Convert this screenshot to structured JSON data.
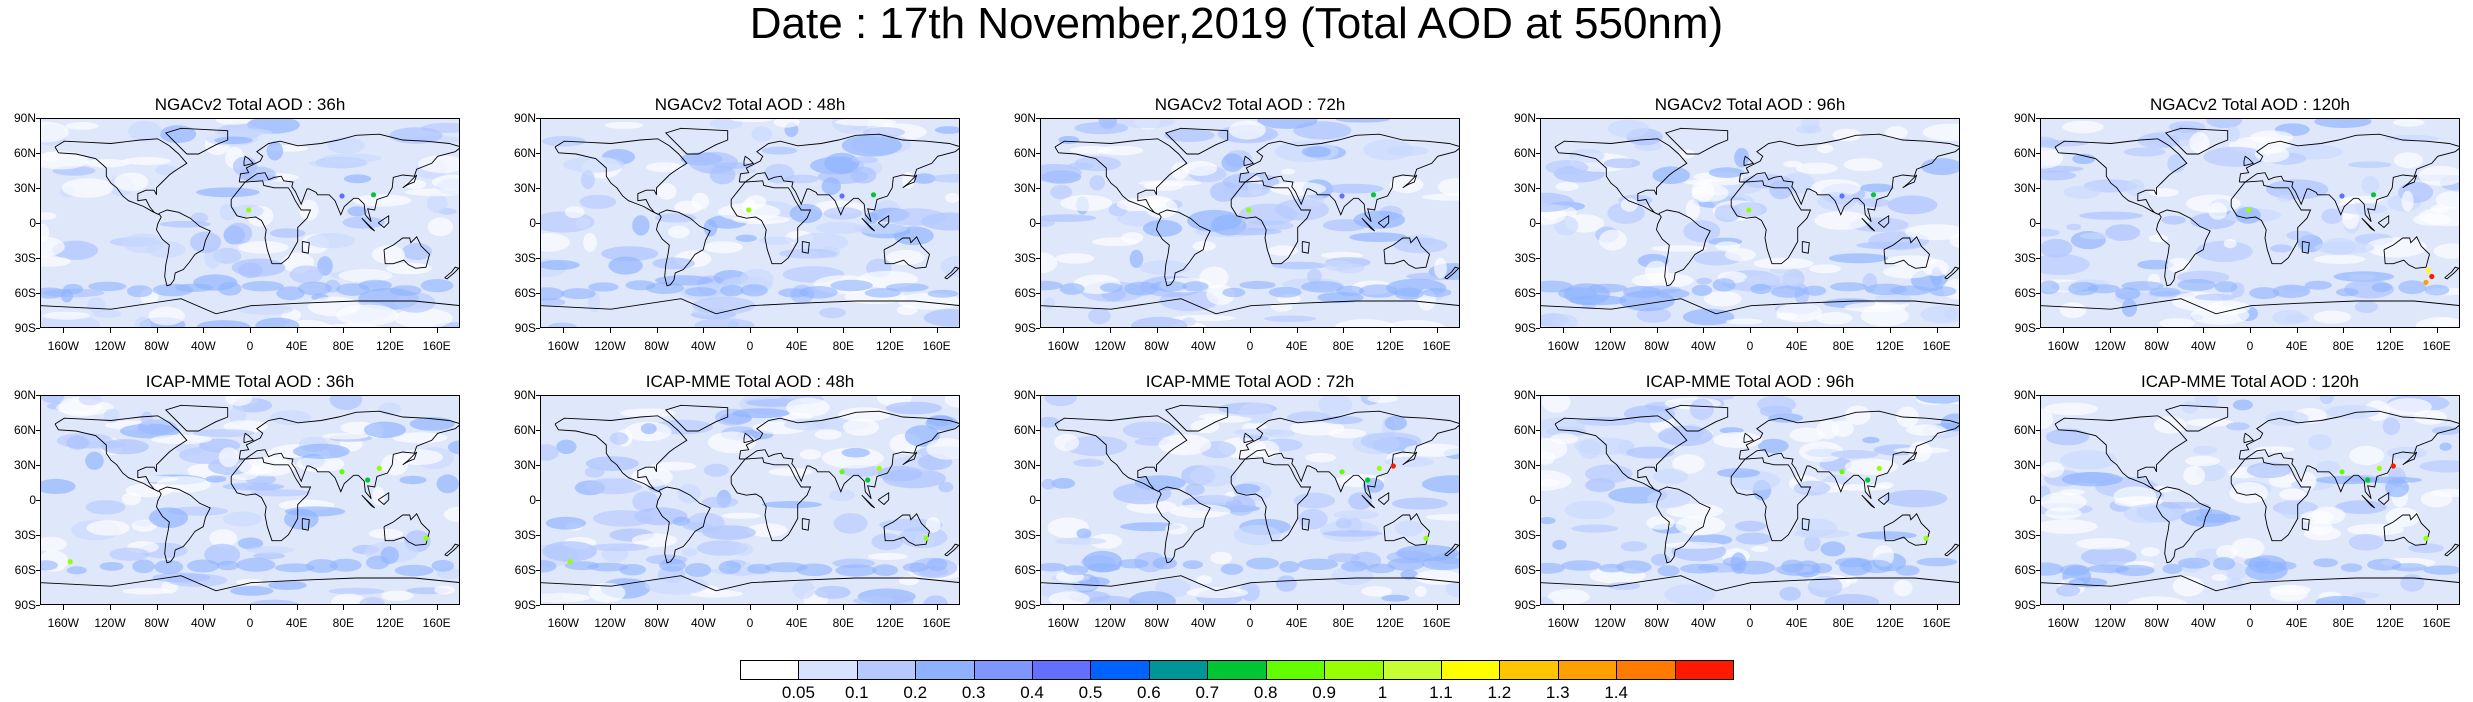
{
  "title": "Date : 17th November,2019 (Total AOD at 550nm)",
  "lat_labels": [
    "90N",
    "60N",
    "30N",
    "0",
    "30S",
    "60S",
    "90S"
  ],
  "lon_labels": [
    "160W",
    "120W",
    "80W",
    "40W",
    "0",
    "40E",
    "80E",
    "120E",
    "160E"
  ],
  "panels": [
    {
      "title": "NGACv2 Total AOD : 36h",
      "model": "NGACv2",
      "forecast_hour": 36
    },
    {
      "title": "NGACv2 Total AOD : 48h",
      "model": "NGACv2",
      "forecast_hour": 48
    },
    {
      "title": "NGACv2 Total AOD : 72h",
      "model": "NGACv2",
      "forecast_hour": 72
    },
    {
      "title": "NGACv2 Total AOD : 96h",
      "model": "NGACv2",
      "forecast_hour": 96
    },
    {
      "title": "NGACv2 Total AOD : 120h",
      "model": "NGACv2",
      "forecast_hour": 120
    },
    {
      "title": "ICAP-MME Total AOD : 36h",
      "model": "ICAP-MME",
      "forecast_hour": 36
    },
    {
      "title": "ICAP-MME Total AOD : 48h",
      "model": "ICAP-MME",
      "forecast_hour": 48
    },
    {
      "title": "ICAP-MME Total AOD : 72h",
      "model": "ICAP-MME",
      "forecast_hour": 72
    },
    {
      "title": "ICAP-MME Total AOD : 96h",
      "model": "ICAP-MME",
      "forecast_hour": 96
    },
    {
      "title": "ICAP-MME Total AOD : 120h",
      "model": "ICAP-MME",
      "forecast_hour": 120
    }
  ],
  "colorbar": {
    "labels": [
      "0.05",
      "0.1",
      "0.2",
      "0.3",
      "0.4",
      "0.5",
      "0.6",
      "0.7",
      "0.8",
      "0.9",
      "1",
      "1.1",
      "1.2",
      "1.3",
      "1.4"
    ],
    "colors": [
      "#ffffff",
      "#d6e2ff",
      "#b5c9ff",
      "#8eb2ff",
      "#7f96ff",
      "#6370ff",
      "#0063ff",
      "#009696",
      "#00c633",
      "#63ff00",
      "#96ff00",
      "#c6ff33",
      "#ffff00",
      "#ffc600",
      "#ffa000",
      "#ff7c00",
      "#ff1900"
    ]
  }
}
